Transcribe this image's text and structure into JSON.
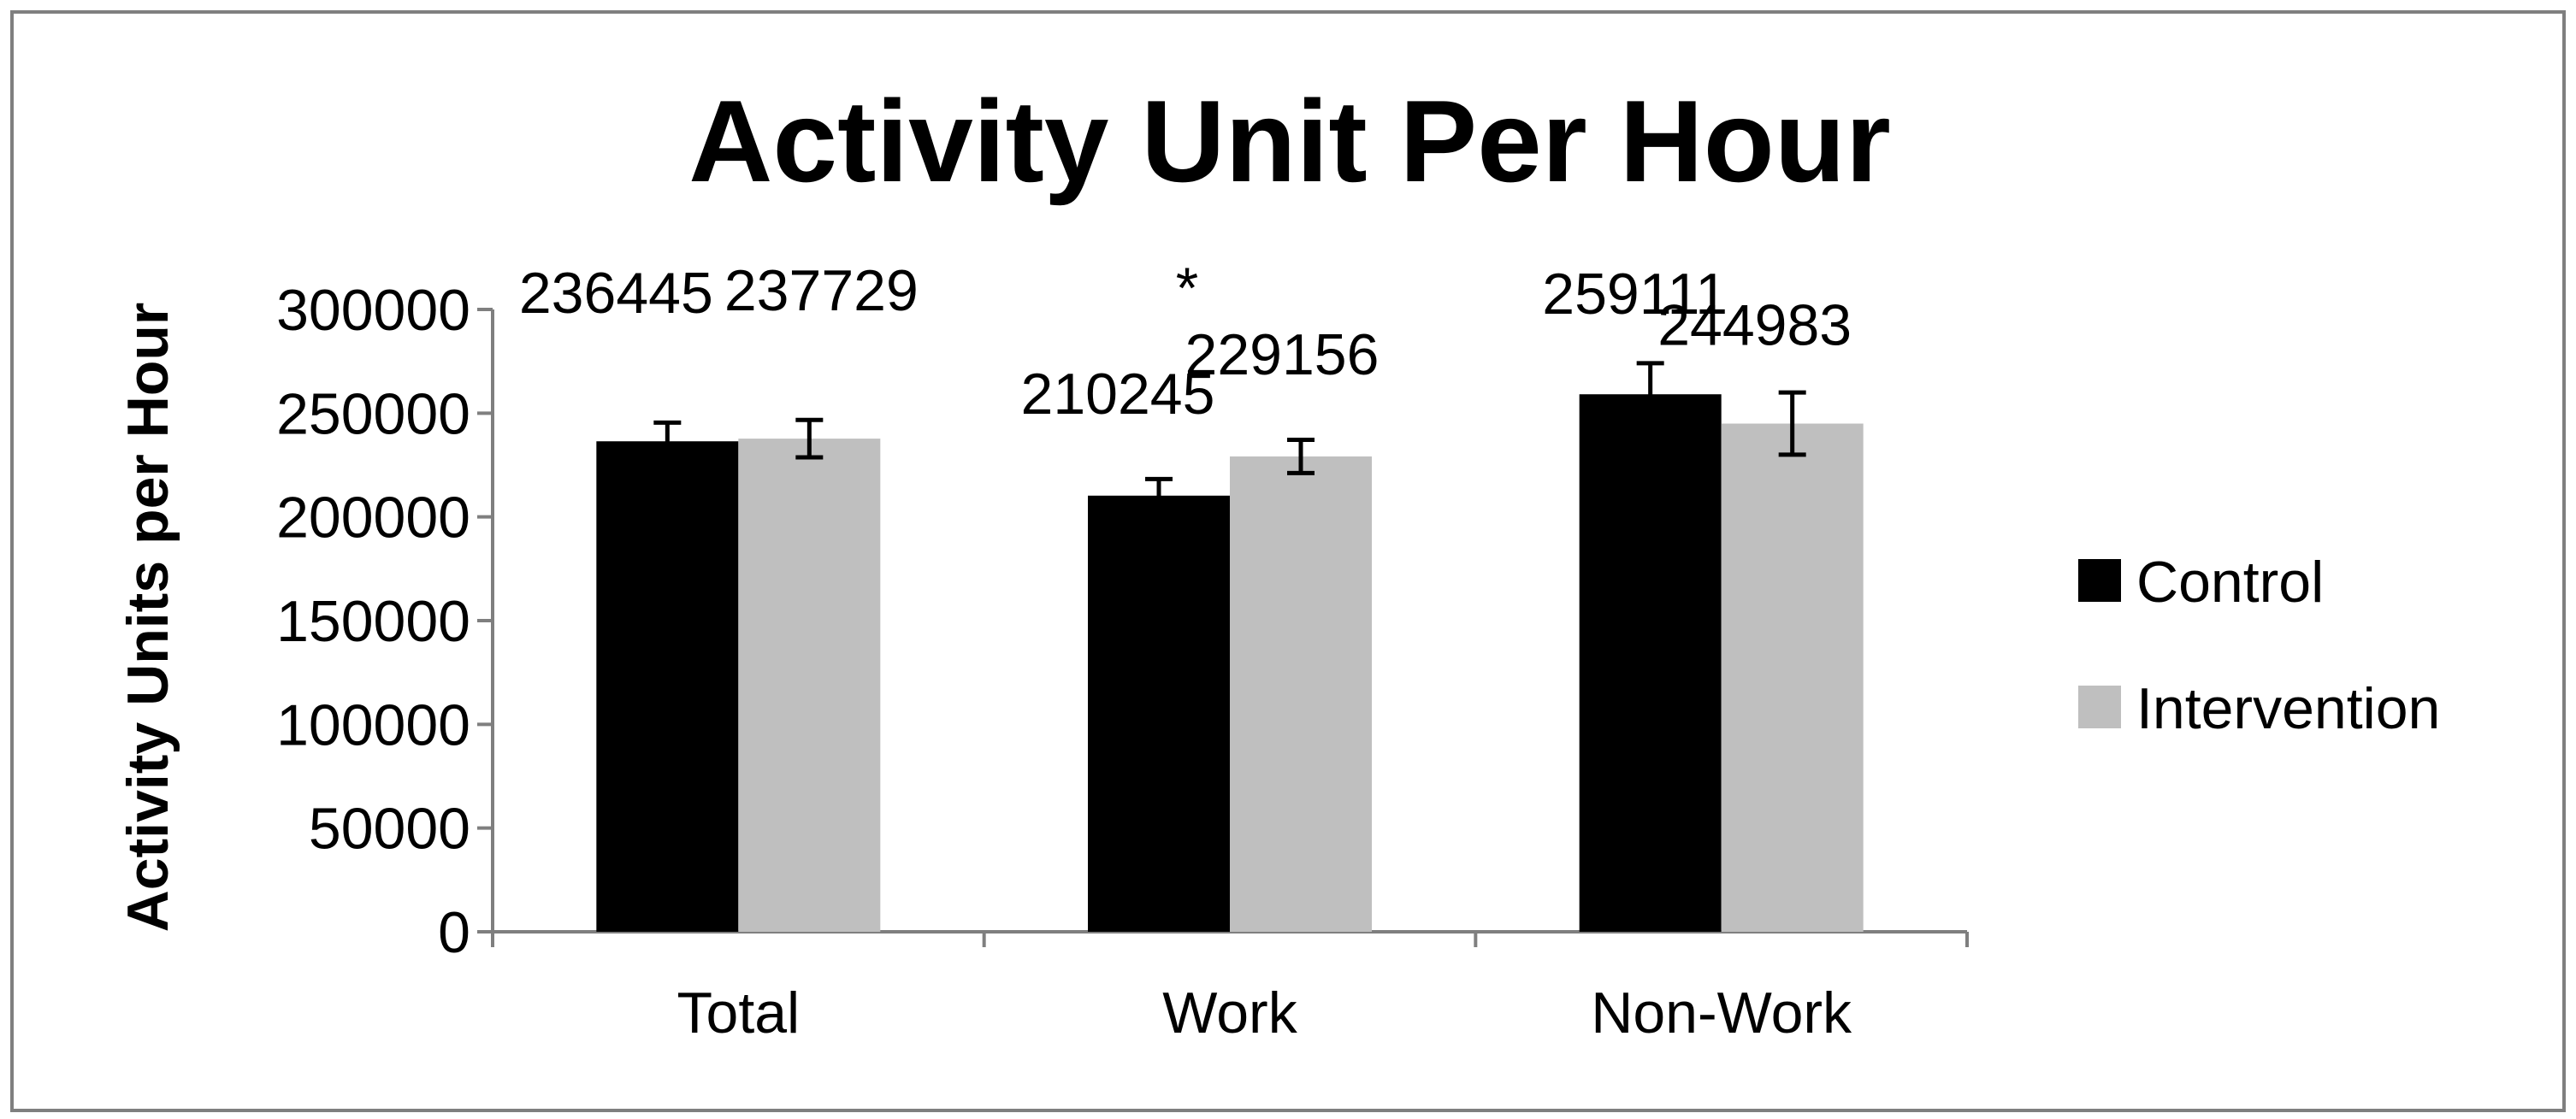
{
  "chart_data": {
    "type": "bar",
    "title": "Activity Unit Per Hour",
    "ylabel": "Activity Units per Hour",
    "xlabel": "",
    "categories": [
      "Total",
      "Work",
      "Non-Work"
    ],
    "ylim": [
      0,
      300000
    ],
    "yticks": [
      0,
      50000,
      100000,
      150000,
      200000,
      250000,
      300000
    ],
    "series": [
      {
        "name": "Control",
        "color": "#000000",
        "values": [
          236445,
          210245,
          259111
        ],
        "errors": [
          9000,
          8000,
          15000
        ],
        "labels": [
          "236445",
          "210245",
          "259111"
        ]
      },
      {
        "name": "Intervention",
        "color": "#bfbfbf",
        "values": [
          237729,
          229156,
          244983
        ],
        "errors": [
          9000,
          8000,
          15000
        ],
        "labels": [
          "237729",
          "229156",
          "244983"
        ]
      }
    ],
    "annotations": [
      {
        "text": "*",
        "category": "Work"
      }
    ],
    "legend_position": "right",
    "grid": false
  }
}
